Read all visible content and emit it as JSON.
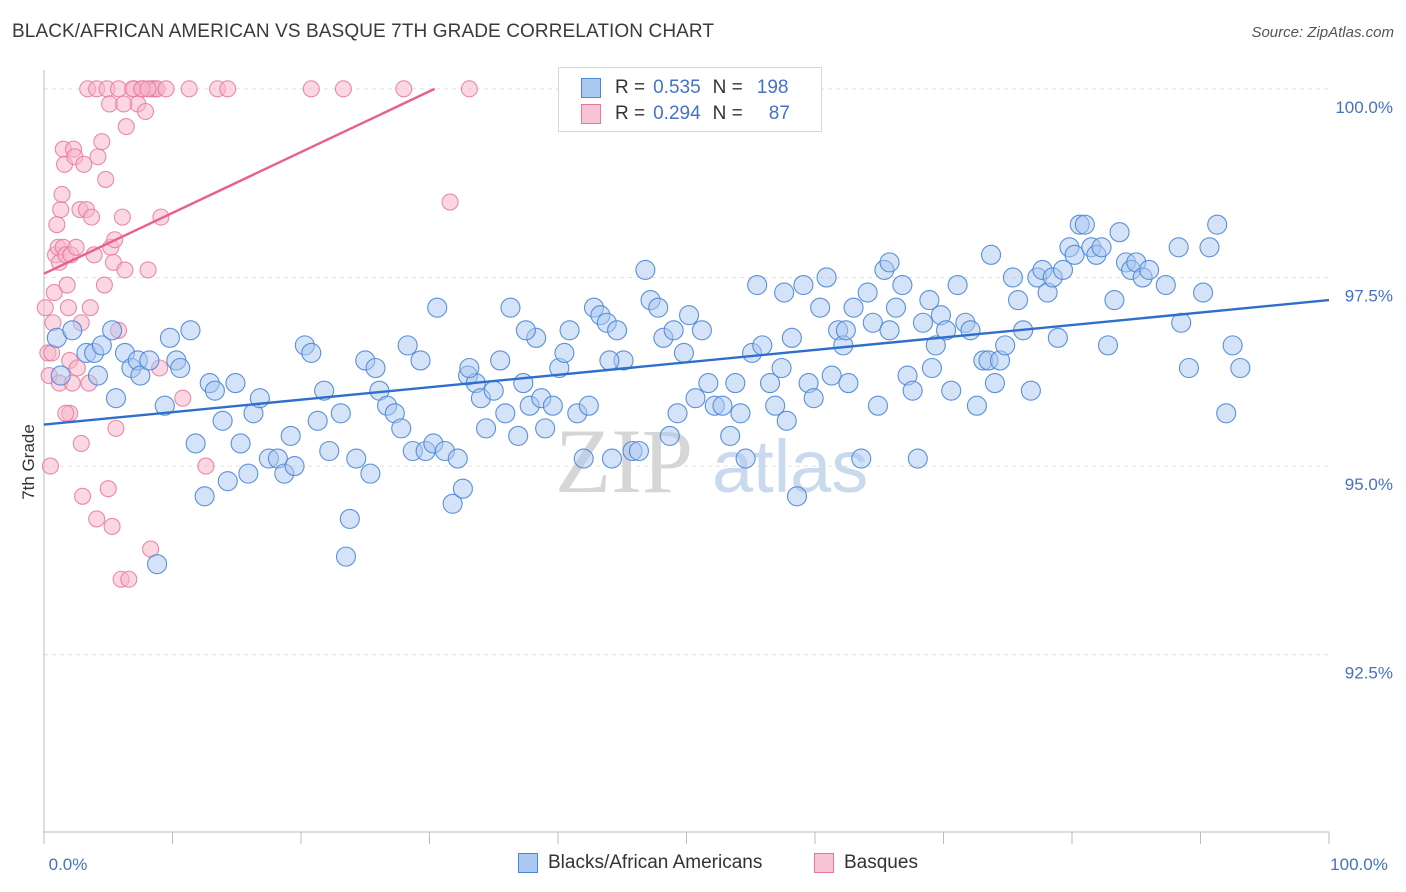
{
  "title": "BLACK/AFRICAN AMERICAN VS BASQUE 7TH GRADE CORRELATION CHART",
  "source": "Source: ZipAtlas.com",
  "watermark": {
    "zip": "ZIP",
    "atlas": "atlas"
  },
  "legend": {
    "series1": {
      "r_label": "R =",
      "r_value": "0.535",
      "n_label": "N =",
      "n_value": "198"
    },
    "series2": {
      "r_label": "R =",
      "r_value": "0.294",
      "n_label": "N =",
      "n_value": "87"
    }
  },
  "bottom_legend": {
    "series1": "Blacks/African Americans",
    "series2": "Basques"
  },
  "colors": {
    "blue_fill": "#aac8f0",
    "blue_stroke": "#4a86d6",
    "blue_line": "#2f6fcc",
    "pink_fill": "#f6b6ca",
    "pink_stroke": "#e6789c",
    "pink_line": "#e8608c",
    "tick_blue": "#4472c4",
    "grid": "#e0e0e0"
  },
  "chart_data": {
    "type": "scatter",
    "title": "BLACK/AFRICAN AMERICAN VS BASQUE 7TH GRADE CORRELATION CHART",
    "xlabel": "",
    "ylabel": "7th Grade",
    "xlim": [
      0,
      100
    ],
    "ylim": [
      90.15,
      100.25
    ],
    "x_tick_labels": [
      "0.0%",
      "100.0%"
    ],
    "y_ticks": [
      92.5,
      95.0,
      97.5,
      100.0
    ],
    "y_tick_labels": [
      "92.5%",
      "95.0%",
      "97.5%",
      "100.0%"
    ],
    "grid": "horizontal dashed",
    "legend_position": "top-center",
    "series": [
      {
        "name": "Blacks/African Americans",
        "r": 0.535,
        "n": 198,
        "trend": {
          "x": [
            0,
            100
          ],
          "y": [
            95.55,
            97.2
          ]
        },
        "points": [
          [
            1,
            96.7
          ],
          [
            1.3,
            96.2
          ],
          [
            2.2,
            96.8
          ],
          [
            3.3,
            96.5
          ],
          [
            3.9,
            96.5
          ],
          [
            4.2,
            96.2
          ],
          [
            4.5,
            96.6
          ],
          [
            5.3,
            96.8
          ],
          [
            5.6,
            95.9
          ],
          [
            6.3,
            96.5
          ],
          [
            6.8,
            96.3
          ],
          [
            7.3,
            96.4
          ],
          [
            7.5,
            96.2
          ],
          [
            8.2,
            96.4
          ],
          [
            8.8,
            93.7
          ],
          [
            9.4,
            95.8
          ],
          [
            9.8,
            96.7
          ],
          [
            10.3,
            96.4
          ],
          [
            10.6,
            96.3
          ],
          [
            11.4,
            96.8
          ],
          [
            11.8,
            95.3
          ],
          [
            12.5,
            94.6
          ],
          [
            12.9,
            96.1
          ],
          [
            13.3,
            96
          ],
          [
            13.9,
            95.6
          ],
          [
            14.3,
            94.8
          ],
          [
            14.9,
            96.1
          ],
          [
            15.3,
            95.3
          ],
          [
            15.9,
            94.9
          ],
          [
            16.3,
            95.7
          ],
          [
            16.8,
            95.9
          ],
          [
            17.5,
            95.1
          ],
          [
            18.2,
            95.1
          ],
          [
            18.7,
            94.9
          ],
          [
            19.2,
            95.4
          ],
          [
            19.5,
            95
          ],
          [
            20.3,
            96.6
          ],
          [
            20.8,
            96.5
          ],
          [
            21.3,
            95.6
          ],
          [
            21.8,
            96
          ],
          [
            22.2,
            95.2
          ],
          [
            23.1,
            95.7
          ],
          [
            23.5,
            93.8
          ],
          [
            23.8,
            94.3
          ],
          [
            24.3,
            95.1
          ],
          [
            25,
            96.4
          ],
          [
            25.4,
            94.9
          ],
          [
            25.8,
            96.3
          ],
          [
            26.1,
            96
          ],
          [
            26.7,
            95.8
          ],
          [
            27.3,
            95.7
          ],
          [
            27.8,
            95.5
          ],
          [
            28.3,
            96.6
          ],
          [
            28.7,
            95.2
          ],
          [
            29.3,
            96.4
          ],
          [
            29.7,
            95.2
          ],
          [
            30.3,
            95.3
          ],
          [
            30.6,
            97.1
          ],
          [
            31.2,
            95.2
          ],
          [
            31.8,
            94.5
          ],
          [
            32.2,
            95.1
          ],
          [
            32.6,
            94.7
          ],
          [
            33,
            96.2
          ],
          [
            33.6,
            96.1
          ],
          [
            34,
            95.9
          ],
          [
            34.4,
            95.5
          ],
          [
            35,
            96
          ],
          [
            35.5,
            96.4
          ],
          [
            35.9,
            95.7
          ],
          [
            36.3,
            97.1
          ],
          [
            36.9,
            95.4
          ],
          [
            37.3,
            96.1
          ],
          [
            37.8,
            95.8
          ],
          [
            38.3,
            96.7
          ],
          [
            38.7,
            95.9
          ],
          [
            39,
            95.5
          ],
          [
            39.6,
            95.8
          ],
          [
            40.1,
            96.3
          ],
          [
            40.5,
            96.5
          ],
          [
            40.9,
            96.8
          ],
          [
            41.5,
            95.7
          ],
          [
            42,
            95.1
          ],
          [
            42.4,
            95.8
          ],
          [
            42.8,
            97.1
          ],
          [
            43.3,
            97
          ],
          [
            43.8,
            96.9
          ],
          [
            44.2,
            95.1
          ],
          [
            44.6,
            96.8
          ],
          [
            45.1,
            96.4
          ],
          [
            45.8,
            95.2
          ],
          [
            46.3,
            95.2
          ],
          [
            46.8,
            97.6
          ],
          [
            47.2,
            97.2
          ],
          [
            47.8,
            97.1
          ],
          [
            48.2,
            96.7
          ],
          [
            48.7,
            95.4
          ],
          [
            49.3,
            95.7
          ],
          [
            49.8,
            96.5
          ],
          [
            50.2,
            97
          ],
          [
            50.7,
            95.9
          ],
          [
            51.2,
            96.8
          ],
          [
            51.7,
            96.1
          ],
          [
            52.2,
            95.8
          ],
          [
            52.8,
            95.8
          ],
          [
            53.4,
            95.4
          ],
          [
            53.8,
            96.1
          ],
          [
            54.2,
            95.7
          ],
          [
            54.6,
            95.1
          ],
          [
            55.1,
            96.5
          ],
          [
            55.5,
            97.4
          ],
          [
            55.9,
            96.6
          ],
          [
            56.5,
            96.1
          ],
          [
            56.9,
            95.8
          ],
          [
            57.4,
            96.3
          ],
          [
            57.8,
            95.6
          ],
          [
            58.2,
            96.7
          ],
          [
            58.6,
            94.6
          ],
          [
            59.1,
            97.4
          ],
          [
            59.5,
            96.1
          ],
          [
            59.9,
            95.9
          ],
          [
            60.4,
            97.1
          ],
          [
            60.9,
            97.5
          ],
          [
            61.3,
            96.2
          ],
          [
            61.8,
            96.8
          ],
          [
            62.2,
            96.6
          ],
          [
            62.6,
            96.1
          ],
          [
            63,
            97.1
          ],
          [
            63.6,
            95.1
          ],
          [
            64.1,
            97.3
          ],
          [
            64.5,
            96.9
          ],
          [
            64.9,
            95.8
          ],
          [
            65.4,
            97.6
          ],
          [
            65.8,
            96.8
          ],
          [
            66.3,
            97.1
          ],
          [
            66.8,
            97.4
          ],
          [
            67.2,
            96.2
          ],
          [
            67.6,
            96
          ],
          [
            68,
            95.1
          ],
          [
            68.4,
            96.9
          ],
          [
            68.9,
            97.2
          ],
          [
            69.4,
            96.6
          ],
          [
            69.8,
            97
          ],
          [
            70.2,
            96.8
          ],
          [
            70.6,
            96
          ],
          [
            71.1,
            97.4
          ],
          [
            71.7,
            96.9
          ],
          [
            72.1,
            96.8
          ],
          [
            72.6,
            95.8
          ],
          [
            73.1,
            96.4
          ],
          [
            73.5,
            96.4
          ],
          [
            74,
            96.1
          ],
          [
            74.4,
            96.4
          ],
          [
            74.8,
            96.6
          ],
          [
            75.4,
            97.5
          ],
          [
            75.8,
            97.2
          ],
          [
            76.2,
            96.8
          ],
          [
            76.8,
            96
          ],
          [
            77.3,
            97.5
          ],
          [
            77.7,
            97.6
          ],
          [
            78.1,
            97.3
          ],
          [
            78.5,
            97.5
          ],
          [
            78.9,
            96.7
          ],
          [
            79.3,
            97.6
          ],
          [
            79.8,
            97.9
          ],
          [
            80.2,
            97.8
          ],
          [
            80.6,
            98.2
          ],
          [
            81,
            98.2
          ],
          [
            81.5,
            97.9
          ],
          [
            81.9,
            97.8
          ],
          [
            82.3,
            97.9
          ],
          [
            82.8,
            96.6
          ],
          [
            83.3,
            97.2
          ],
          [
            83.7,
            98.1
          ],
          [
            84.2,
            97.7
          ],
          [
            84.6,
            97.6
          ],
          [
            85,
            97.7
          ],
          [
            85.5,
            97.5
          ],
          [
            86,
            97.6
          ],
          [
            87.3,
            97.4
          ],
          [
            88.5,
            96.9
          ],
          [
            89.1,
            96.3
          ],
          [
            90.2,
            97.3
          ],
          [
            90.7,
            97.9
          ],
          [
            91.3,
            98.2
          ],
          [
            92,
            95.7
          ],
          [
            92.5,
            96.6
          ],
          [
            93.1,
            96.3
          ],
          [
            88.3,
            97.9
          ],
          [
            73.7,
            97.8
          ],
          [
            65.8,
            97.7
          ],
          [
            57.6,
            97.3
          ],
          [
            62.4,
            96.8
          ],
          [
            69.1,
            96.3
          ],
          [
            49,
            96.8
          ],
          [
            44,
            96.4
          ],
          [
            37.5,
            96.8
          ],
          [
            33.1,
            96.3
          ]
        ]
      },
      {
        "name": "Basques",
        "r": 0.294,
        "n": 87,
        "trend": {
          "x": [
            0,
            30.4
          ],
          "y": [
            97.55,
            100
          ]
        },
        "points": [
          [
            0.1,
            97.1
          ],
          [
            0.3,
            96.5
          ],
          [
            0.4,
            96.2
          ],
          [
            0.5,
            95
          ],
          [
            0.6,
            96.5
          ],
          [
            0.8,
            97.3
          ],
          [
            0.9,
            97.8
          ],
          [
            1,
            98.2
          ],
          [
            1.1,
            97.9
          ],
          [
            1.2,
            97.7
          ],
          [
            1.3,
            98.4
          ],
          [
            1.4,
            98.6
          ],
          [
            1.5,
            97.9
          ],
          [
            1.5,
            99.2
          ],
          [
            1.6,
            99.0
          ],
          [
            1.7,
            97.8
          ],
          [
            1.8,
            97.4
          ],
          [
            1.9,
            97.1
          ],
          [
            2,
            95.7
          ],
          [
            2,
            96.4
          ],
          [
            2.1,
            97.8
          ],
          [
            2.3,
            99.2
          ],
          [
            2.4,
            99.1
          ],
          [
            2.5,
            97.9
          ],
          [
            2.6,
            96.3
          ],
          [
            2.8,
            98.4
          ],
          [
            2.9,
            95.3
          ],
          [
            3,
            94.6
          ],
          [
            3.1,
            99.0
          ],
          [
            3.3,
            98.4
          ],
          [
            3.5,
            96.1
          ],
          [
            3.7,
            98.3
          ],
          [
            3.9,
            97.8
          ],
          [
            4.1,
            94.3
          ],
          [
            4.2,
            99.1
          ],
          [
            4.5,
            99.3
          ],
          [
            4.7,
            97.4
          ],
          [
            4.8,
            98.8
          ],
          [
            5,
            94.7
          ],
          [
            5.2,
            97.9
          ],
          [
            5.3,
            94.2
          ],
          [
            5.5,
            98.0
          ],
          [
            5.6,
            95.5
          ],
          [
            5.8,
            96.8
          ],
          [
            6,
            93.5
          ],
          [
            6.1,
            98.3
          ],
          [
            6.4,
            99.5
          ],
          [
            6.6,
            93.5
          ],
          [
            7,
            100
          ],
          [
            7.3,
            99.8
          ],
          [
            7.7,
            100
          ],
          [
            7.9,
            99.7
          ],
          [
            8.1,
            97.6
          ],
          [
            8.3,
            93.9
          ],
          [
            8.4,
            100
          ],
          [
            8.6,
            100
          ],
          [
            8.8,
            100
          ],
          [
            9,
            96.3
          ],
          [
            9.1,
            98.3
          ],
          [
            9.5,
            100
          ],
          [
            10.8,
            95.9
          ],
          [
            11.3,
            100
          ],
          [
            12.6,
            95
          ],
          [
            13.5,
            100
          ],
          [
            14.3,
            100
          ],
          [
            20.8,
            100
          ],
          [
            23.3,
            100
          ],
          [
            28,
            100
          ],
          [
            31.6,
            98.5
          ],
          [
            33.1,
            100
          ],
          [
            3.4,
            100
          ],
          [
            4.1,
            100
          ],
          [
            4.9,
            100
          ],
          [
            5.1,
            99.8
          ],
          [
            5.8,
            100
          ],
          [
            6.2,
            99.8
          ],
          [
            6.9,
            100
          ],
          [
            7.6,
            100
          ],
          [
            8.1,
            100
          ],
          [
            1.7,
            95.7
          ],
          [
            2.9,
            96.9
          ],
          [
            3.6,
            97.1
          ],
          [
            1.2,
            96.1
          ],
          [
            2.2,
            96.1
          ],
          [
            0.7,
            96.9
          ],
          [
            5.4,
            97.7
          ],
          [
            6.3,
            97.6
          ]
        ]
      }
    ]
  }
}
